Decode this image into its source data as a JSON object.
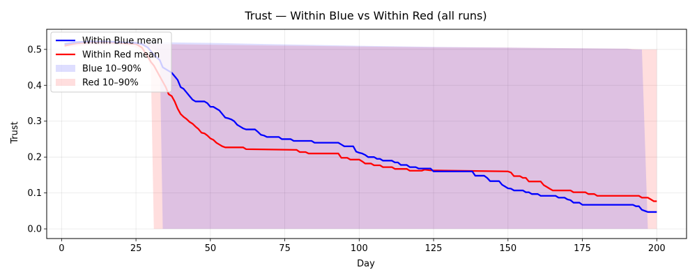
{
  "chart_data": {
    "type": "line",
    "title": "Trust — Within Blue vs Within Red (all runs)",
    "xlabel": "Day",
    "ylabel": "Trust",
    "xlim": [
      -5,
      210
    ],
    "ylim": [
      -0.027,
      0.556
    ],
    "xticks": [
      0,
      25,
      50,
      75,
      100,
      125,
      150,
      175,
      200
    ],
    "yticks": [
      0.0,
      0.1,
      0.2,
      0.3,
      0.4,
      0.5
    ],
    "ytick_labels": [
      "0.0",
      "0.1",
      "0.2",
      "0.3",
      "0.4",
      "0.5"
    ],
    "grid": true,
    "legend_position": "top-left",
    "colors": {
      "blue_line": "#0000ff",
      "red_line": "#ff0000",
      "blue_band": "#0000ff",
      "red_band": "#ff0000",
      "overlap_band": "#d8bddd"
    },
    "series": [
      {
        "name": "Within Blue mean",
        "kind": "line",
        "color": "#0000ff",
        "points": [
          [
            1,
            0.515
          ],
          [
            5,
            0.52
          ],
          [
            10,
            0.522
          ],
          [
            15,
            0.522
          ],
          [
            20,
            0.52
          ],
          [
            25,
            0.518
          ],
          [
            27,
            0.515
          ],
          [
            29,
            0.505
          ],
          [
            31,
            0.485
          ],
          [
            33,
            0.47
          ],
          [
            34,
            0.45
          ],
          [
            35,
            0.445
          ],
          [
            36,
            0.44
          ],
          [
            37,
            0.435
          ],
          [
            38,
            0.425
          ],
          [
            39,
            0.415
          ],
          [
            40,
            0.395
          ],
          [
            41,
            0.39
          ],
          [
            42,
            0.38
          ],
          [
            43,
            0.37
          ],
          [
            44,
            0.36
          ],
          [
            45,
            0.355
          ],
          [
            48,
            0.355
          ],
          [
            49,
            0.35
          ],
          [
            50,
            0.34
          ],
          [
            51,
            0.34
          ],
          [
            52,
            0.335
          ],
          [
            53,
            0.33
          ],
          [
            54,
            0.32
          ],
          [
            55,
            0.31
          ],
          [
            56,
            0.308
          ],
          [
            57,
            0.305
          ],
          [
            58,
            0.3
          ],
          [
            59,
            0.29
          ],
          [
            60,
            0.285
          ],
          [
            61,
            0.28
          ],
          [
            62,
            0.277
          ],
          [
            65,
            0.277
          ],
          [
            66,
            0.27
          ],
          [
            67,
            0.262
          ],
          [
            68,
            0.26
          ],
          [
            69,
            0.256
          ],
          [
            73,
            0.256
          ],
          [
            74,
            0.25
          ],
          [
            77,
            0.25
          ],
          [
            78,
            0.245
          ],
          [
            84,
            0.245
          ],
          [
            85,
            0.24
          ],
          [
            93,
            0.24
          ],
          [
            94,
            0.235
          ],
          [
            95,
            0.23
          ],
          [
            98,
            0.23
          ],
          [
            99,
            0.215
          ],
          [
            100,
            0.212
          ],
          [
            101,
            0.21
          ],
          [
            102,
            0.206
          ],
          [
            103,
            0.2
          ],
          [
            105,
            0.2
          ],
          [
            106,
            0.195
          ],
          [
            107,
            0.195
          ],
          [
            108,
            0.19
          ],
          [
            111,
            0.19
          ],
          [
            112,
            0.185
          ],
          [
            113,
            0.185
          ],
          [
            114,
            0.178
          ],
          [
            116,
            0.178
          ],
          [
            117,
            0.172
          ],
          [
            119,
            0.172
          ],
          [
            120,
            0.168
          ],
          [
            124,
            0.168
          ],
          [
            125,
            0.16
          ],
          [
            138,
            0.16
          ],
          [
            139,
            0.148
          ],
          [
            142,
            0.148
          ],
          [
            143,
            0.142
          ],
          [
            144,
            0.133
          ],
          [
            147,
            0.133
          ],
          [
            148,
            0.123
          ],
          [
            149,
            0.118
          ],
          [
            150,
            0.113
          ],
          [
            151,
            0.112
          ],
          [
            152,
            0.107
          ],
          [
            155,
            0.107
          ],
          [
            156,
            0.102
          ],
          [
            157,
            0.102
          ],
          [
            158,
            0.097
          ],
          [
            160,
            0.097
          ],
          [
            161,
            0.092
          ],
          [
            166,
            0.092
          ],
          [
            167,
            0.087
          ],
          [
            169,
            0.087
          ],
          [
            170,
            0.082
          ],
          [
            171,
            0.08
          ],
          [
            172,
            0.073
          ],
          [
            174,
            0.073
          ],
          [
            175,
            0.067
          ],
          [
            192,
            0.067
          ],
          [
            193,
            0.063
          ],
          [
            194,
            0.063
          ],
          [
            195,
            0.053
          ],
          [
            196,
            0.05
          ],
          [
            197,
            0.047
          ],
          [
            200,
            0.047
          ]
        ]
      },
      {
        "name": "Within Red mean",
        "kind": "line",
        "color": "#ff0000",
        "points": [
          [
            1,
            0.51
          ],
          [
            5,
            0.517
          ],
          [
            10,
            0.52
          ],
          [
            15,
            0.52
          ],
          [
            20,
            0.518
          ],
          [
            25,
            0.515
          ],
          [
            27,
            0.505
          ],
          [
            29,
            0.48
          ],
          [
            30,
            0.465
          ],
          [
            31,
            0.455
          ],
          [
            32,
            0.44
          ],
          [
            33,
            0.425
          ],
          [
            34,
            0.41
          ],
          [
            35,
            0.395
          ],
          [
            36,
            0.375
          ],
          [
            37,
            0.37
          ],
          [
            38,
            0.355
          ],
          [
            39,
            0.335
          ],
          [
            40,
            0.32
          ],
          [
            41,
            0.312
          ],
          [
            42,
            0.306
          ],
          [
            43,
            0.298
          ],
          [
            44,
            0.293
          ],
          [
            45,
            0.285
          ],
          [
            46,
            0.278
          ],
          [
            47,
            0.268
          ],
          [
            48,
            0.266
          ],
          [
            49,
            0.26
          ],
          [
            50,
            0.252
          ],
          [
            51,
            0.248
          ],
          [
            52,
            0.24
          ],
          [
            53,
            0.235
          ],
          [
            54,
            0.23
          ],
          [
            55,
            0.227
          ],
          [
            61,
            0.227
          ],
          [
            62,
            0.222
          ],
          [
            79,
            0.22
          ],
          [
            80,
            0.214
          ],
          [
            82,
            0.214
          ],
          [
            83,
            0.21
          ],
          [
            93,
            0.21
          ],
          [
            94,
            0.198
          ],
          [
            96,
            0.198
          ],
          [
            97,
            0.193
          ],
          [
            100,
            0.193
          ],
          [
            101,
            0.188
          ],
          [
            102,
            0.182
          ],
          [
            104,
            0.182
          ],
          [
            105,
            0.177
          ],
          [
            107,
            0.177
          ],
          [
            108,
            0.172
          ],
          [
            111,
            0.172
          ],
          [
            112,
            0.167
          ],
          [
            116,
            0.167
          ],
          [
            117,
            0.162
          ],
          [
            121,
            0.162
          ],
          [
            122,
            0.165
          ],
          [
            124,
            0.163
          ],
          [
            150,
            0.16
          ],
          [
            151,
            0.157
          ],
          [
            152,
            0.147
          ],
          [
            154,
            0.147
          ],
          [
            155,
            0.142
          ],
          [
            156,
            0.142
          ],
          [
            157,
            0.132
          ],
          [
            161,
            0.132
          ],
          [
            162,
            0.122
          ],
          [
            163,
            0.117
          ],
          [
            164,
            0.112
          ],
          [
            165,
            0.107
          ],
          [
            171,
            0.107
          ],
          [
            172,
            0.102
          ],
          [
            176,
            0.102
          ],
          [
            177,
            0.097
          ],
          [
            179,
            0.097
          ],
          [
            180,
            0.092
          ],
          [
            194,
            0.092
          ],
          [
            195,
            0.087
          ],
          [
            197,
            0.087
          ],
          [
            198,
            0.082
          ],
          [
            199,
            0.077
          ],
          [
            200,
            0.077
          ]
        ]
      },
      {
        "name": "Blue 10–90%",
        "kind": "band",
        "color": "#0000ff",
        "opacity": 0.13,
        "upper": [
          [
            1,
            0.52
          ],
          [
            10,
            0.525
          ],
          [
            20,
            0.523
          ],
          [
            30,
            0.522
          ],
          [
            34,
            0.52
          ],
          [
            50,
            0.518
          ],
          [
            75,
            0.514
          ],
          [
            100,
            0.51
          ],
          [
            125,
            0.507
          ],
          [
            150,
            0.505
          ],
          [
            175,
            0.503
          ],
          [
            190,
            0.502
          ],
          [
            192,
            0.5
          ],
          [
            195,
            0.5
          ],
          [
            197,
            0.0
          ]
        ],
        "lower": [
          [
            1,
            0.51
          ],
          [
            10,
            0.515
          ],
          [
            20,
            0.515
          ],
          [
            25,
            0.513
          ],
          [
            30,
            0.505
          ],
          [
            33,
            0.49
          ],
          [
            34,
            0.0
          ],
          [
            197,
            0.0
          ]
        ]
      },
      {
        "name": "Red 10–90%",
        "kind": "band",
        "color": "#ff0000",
        "opacity": 0.13,
        "upper": [
          [
            1,
            0.515
          ],
          [
            10,
            0.52
          ],
          [
            20,
            0.52
          ],
          [
            25,
            0.518
          ],
          [
            30,
            0.515
          ],
          [
            40,
            0.514
          ],
          [
            60,
            0.512
          ],
          [
            80,
            0.51
          ],
          [
            100,
            0.508
          ],
          [
            125,
            0.506
          ],
          [
            150,
            0.505
          ],
          [
            175,
            0.503
          ],
          [
            190,
            0.502
          ],
          [
            195,
            0.5
          ],
          [
            200,
            0.5
          ]
        ],
        "lower": [
          [
            1,
            0.505
          ],
          [
            10,
            0.512
          ],
          [
            20,
            0.512
          ],
          [
            25,
            0.505
          ],
          [
            28,
            0.49
          ],
          [
            30,
            0.45
          ],
          [
            31,
            0.0
          ],
          [
            200,
            0.0
          ]
        ]
      }
    ]
  }
}
